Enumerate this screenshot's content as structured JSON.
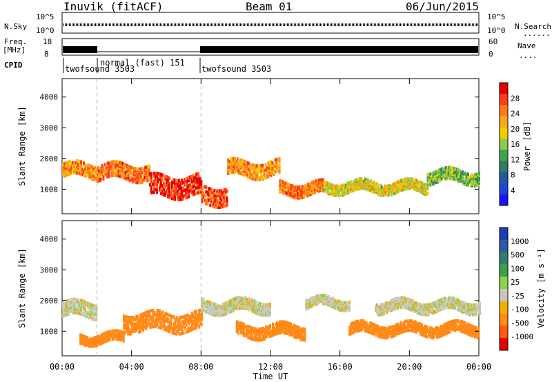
{
  "header": {
    "station": "Inuvik (fitACF)",
    "beam": "Beam 01",
    "date": "06/Jun/2015"
  },
  "top_panels": {
    "nsky_label": "N.Sky",
    "nsky_ticks": [
      "10^5",
      "10^0"
    ],
    "nsearch_label": "N.Search",
    "nsearch_ticks": [
      "10^5",
      "10^0"
    ],
    "freq_label": "Freq.",
    "freq_unit": "[MHz]",
    "freq_ticks": [
      "18",
      "8"
    ],
    "nave_label": "Nave",
    "nave_ticks": [
      "60",
      "0"
    ],
    "cpid_label": "CPID",
    "cpid_segments": [
      {
        "label": "twofsound 3503",
        "start_h": 0,
        "end_h": 2
      },
      {
        "label": "normal (fast) 151",
        "start_h": 2,
        "end_h": 8
      },
      {
        "label": "twofsound 3503",
        "start_h": 8,
        "end_h": 24
      }
    ]
  },
  "power_colorbar": {
    "label": "Power [dB]",
    "ticks": [
      "28",
      "24",
      "20",
      "16",
      "12",
      "8",
      "4"
    ],
    "colors": [
      "#e60000",
      "#ff3b1a",
      "#ff7a1a",
      "#f6a818",
      "#f2cc00",
      "#8fc84a",
      "#3aa64c",
      "#2f7d5e",
      "#1f5a9c",
      "#1f45d6",
      "#1414ff"
    ]
  },
  "velocity_colorbar": {
    "label": "Velocity [m s⁻¹]",
    "ticks": [
      "1000",
      "500",
      "100",
      "25",
      "-25",
      "-100",
      "-500",
      "-1000"
    ],
    "colors": [
      "#1b3fb0",
      "#2c5aa8",
      "#2e7c6a",
      "#3aa04a",
      "#8fd04a",
      "#c8c8c0",
      "#f0b000",
      "#ff8a18",
      "#ff5a10",
      "#e80000"
    ]
  },
  "chart_data": [
    {
      "type": "heatmap",
      "title": "Power",
      "xlabel": "",
      "ylabel": "Slant Range [km]",
      "xlim": [
        0,
        24
      ],
      "ylim": [
        200,
        4600
      ],
      "x_ticks": [
        "00:00",
        "04:00",
        "08:00",
        "12:00",
        "16:00",
        "20:00",
        "00:00"
      ],
      "y_ticks": [
        1000,
        2000,
        3000,
        4000
      ],
      "bands": [
        {
          "start_h": 0.0,
          "end_h": 2.0,
          "center_km": 1600,
          "width_km": 450,
          "value_db": 22
        },
        {
          "start_h": 2.0,
          "end_h": 5.0,
          "center_km": 1550,
          "width_km": 500,
          "value_db": 24
        },
        {
          "start_h": 5.0,
          "end_h": 8.0,
          "center_km": 1100,
          "width_km": 700,
          "value_db": 28
        },
        {
          "start_h": 8.0,
          "end_h": 9.5,
          "center_km": 800,
          "width_km": 600,
          "value_db": 26
        },
        {
          "start_h": 9.5,
          "end_h": 12.5,
          "center_km": 1650,
          "width_km": 500,
          "value_db": 22
        },
        {
          "start_h": 12.5,
          "end_h": 15.0,
          "center_km": 1000,
          "width_km": 400,
          "value_db": 24
        },
        {
          "start_h": 15.0,
          "end_h": 21.0,
          "center_km": 1050,
          "width_km": 350,
          "value_db": 18
        },
        {
          "start_h": 21.0,
          "end_h": 24.0,
          "center_km": 1400,
          "width_km": 400,
          "value_db": 14
        }
      ]
    },
    {
      "type": "heatmap",
      "title": "Velocity",
      "xlabel": "Time UT",
      "ylabel": "Slant Range [km]",
      "xlim": [
        0,
        24
      ],
      "ylim": [
        200,
        4600
      ],
      "x_ticks": [
        "00:00",
        "04:00",
        "08:00",
        "12:00",
        "16:00",
        "20:00",
        "00:00"
      ],
      "y_ticks": [
        1000,
        2000,
        3000,
        4000
      ],
      "bands": [
        {
          "start_h": 0.0,
          "end_h": 2.0,
          "center_km": 1700,
          "width_km": 500,
          "value_ms": 0
        },
        {
          "start_h": 1.0,
          "end_h": 3.5,
          "center_km": 750,
          "width_km": 300,
          "value_ms": -300
        },
        {
          "start_h": 3.5,
          "end_h": 8.0,
          "center_km": 1300,
          "width_km": 600,
          "value_ms": -150
        },
        {
          "start_h": 8.0,
          "end_h": 12.0,
          "center_km": 1800,
          "width_km": 400,
          "value_ms": 0
        },
        {
          "start_h": 10.0,
          "end_h": 14.0,
          "center_km": 1000,
          "width_km": 400,
          "value_ms": -200
        },
        {
          "start_h": 14.0,
          "end_h": 16.5,
          "center_km": 1900,
          "width_km": 300,
          "value_ms": 0
        },
        {
          "start_h": 16.5,
          "end_h": 24.0,
          "center_km": 1050,
          "width_km": 350,
          "value_ms": -400
        },
        {
          "start_h": 18.0,
          "end_h": 24.0,
          "center_km": 1800,
          "width_km": 350,
          "value_ms": 0
        }
      ]
    }
  ]
}
